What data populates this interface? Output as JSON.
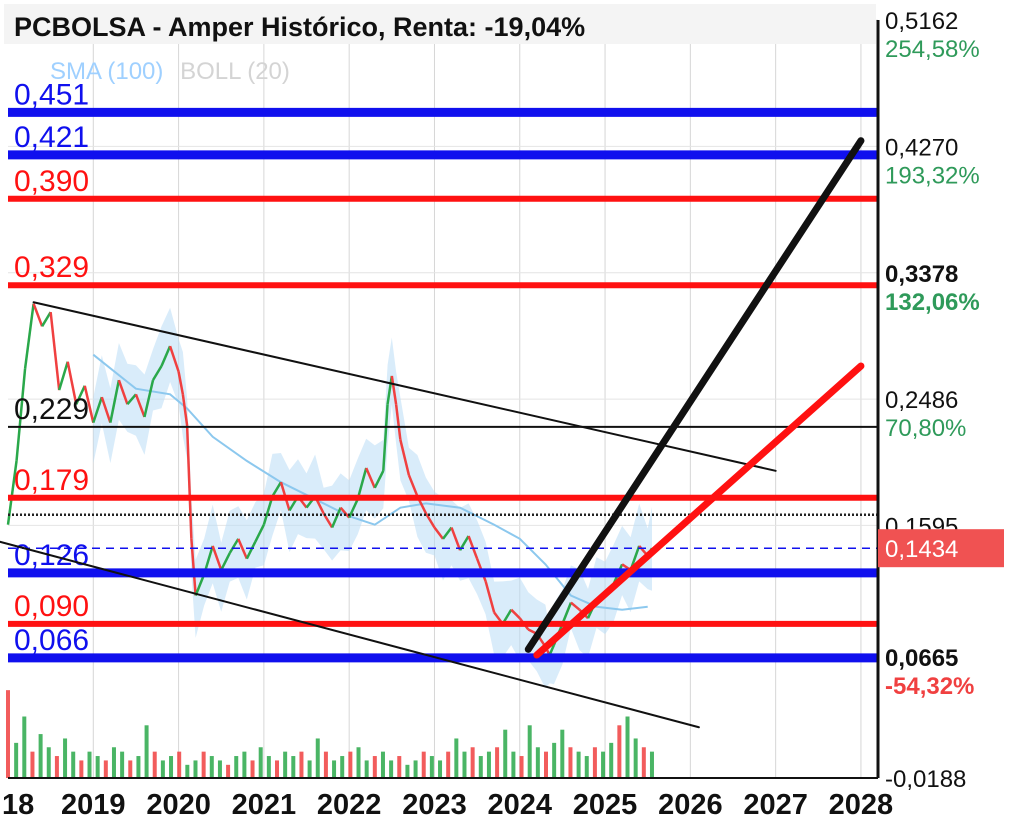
{
  "title": "PCBOLSA - Amper Histórico, Renta: -19,04%",
  "legend": {
    "sma": "SMA (100)",
    "boll": "BOLL (20)"
  },
  "colors": {
    "blue": "#1010ee",
    "red": "#ff1111",
    "black": "#111111",
    "up": "#2aa84a",
    "down": "#f04040",
    "band": "#b9dcf5",
    "sma": "#8cc8ee",
    "pct_up": "#2f9a5a",
    "pct_down": "#f04040",
    "price_badge": "#f05252"
  },
  "chart_data": {
    "type": "line",
    "xlim": [
      2018.0,
      2028.2
    ],
    "ylim": [
      -0.0188,
      0.5162
    ],
    "x_ticks": [
      "18",
      "2019",
      "2020",
      "2021",
      "2022",
      "2023",
      "2024",
      "2025",
      "2026",
      "2027",
      "2028"
    ],
    "x_tick_values": [
      2018,
      2019,
      2020,
      2021,
      2022,
      2023,
      2024,
      2025,
      2026,
      2027,
      2028
    ],
    "right_axis": [
      {
        "value": "0,5162",
        "pct": "254,58%",
        "bold": false,
        "pct_color": "up"
      },
      {
        "value": "0,4270",
        "pct": "193,32%",
        "bold": false,
        "pct_color": "up"
      },
      {
        "value": "0,3378",
        "pct": "132,06%",
        "bold": true,
        "pct_color": "up"
      },
      {
        "value": "0,2486",
        "pct": "70,80%",
        "bold": false,
        "pct_color": "up"
      },
      {
        "value": "0,1595",
        "pct": "",
        "bold": false,
        "pct_color": "up"
      },
      {
        "value": "0,0665",
        "pct": "-54,32%",
        "bold": true,
        "pct_color": "down"
      },
      {
        "value": "-0,0188",
        "pct": "",
        "bold": false,
        "pct_color": "up"
      }
    ],
    "right_axis_values": [
      0.5162,
      0.427,
      0.3378,
      0.2486,
      0.1595,
      0.0665,
      -0.0188
    ],
    "current_price": {
      "label": "0,1434",
      "value": 0.1434
    },
    "horizontal_levels": [
      {
        "label": "0,451",
        "value": 0.451,
        "color": "blue"
      },
      {
        "label": "0,421",
        "value": 0.421,
        "color": "blue"
      },
      {
        "label": "0,390",
        "value": 0.39,
        "color": "red"
      },
      {
        "label": "0,329",
        "value": 0.329,
        "color": "red"
      },
      {
        "label": "0,229",
        "value": 0.229,
        "color": "black"
      },
      {
        "label": "0,179",
        "value": 0.179,
        "color": "red"
      },
      {
        "label": "0,126",
        "value": 0.126,
        "color": "blue"
      },
      {
        "label": "0,090",
        "value": 0.09,
        "color": "red"
      },
      {
        "label": "0,066",
        "value": 0.066,
        "color": "blue"
      }
    ],
    "dotted_level": 0.167,
    "trend_lines": [
      {
        "name": "channel-top",
        "color": "black",
        "width": 2,
        "from": [
          2018.3,
          0.317
        ],
        "to": [
          2027.0,
          0.198
        ]
      },
      {
        "name": "channel-bottom",
        "color": "black",
        "width": 2,
        "from": [
          2017.9,
          0.148
        ],
        "to": [
          2026.1,
          0.017
        ]
      },
      {
        "name": "projection-black",
        "color": "black",
        "width": 7,
        "from": [
          2024.1,
          0.072
        ],
        "to": [
          2028.0,
          0.431
        ]
      },
      {
        "name": "projection-red",
        "color": "red",
        "width": 7,
        "from": [
          2024.2,
          0.068
        ],
        "to": [
          2028.0,
          0.272
        ]
      }
    ],
    "price_series": {
      "name": "",
      "points": [
        [
          2018.0,
          0.16
        ],
        [
          2018.1,
          0.205
        ],
        [
          2018.2,
          0.27
        ],
        [
          2018.3,
          0.316
        ],
        [
          2018.4,
          0.3
        ],
        [
          2018.5,
          0.31
        ],
        [
          2018.6,
          0.255
        ],
        [
          2018.7,
          0.275
        ],
        [
          2018.8,
          0.245
        ],
        [
          2018.9,
          0.258
        ],
        [
          2019.0,
          0.232
        ],
        [
          2019.1,
          0.25
        ],
        [
          2019.2,
          0.232
        ],
        [
          2019.3,
          0.262
        ],
        [
          2019.4,
          0.245
        ],
        [
          2019.5,
          0.252
        ],
        [
          2019.6,
          0.236
        ],
        [
          2019.7,
          0.262
        ],
        [
          2019.8,
          0.272
        ],
        [
          2019.9,
          0.286
        ],
        [
          2020.0,
          0.268
        ],
        [
          2020.05,
          0.252
        ],
        [
          2020.1,
          0.23
        ],
        [
          2020.15,
          0.15
        ],
        [
          2020.2,
          0.11
        ],
        [
          2020.3,
          0.125
        ],
        [
          2020.4,
          0.145
        ],
        [
          2020.5,
          0.128
        ],
        [
          2020.6,
          0.14
        ],
        [
          2020.7,
          0.15
        ],
        [
          2020.8,
          0.136
        ],
        [
          2020.9,
          0.148
        ],
        [
          2021.0,
          0.16
        ],
        [
          2021.1,
          0.18
        ],
        [
          2021.2,
          0.19
        ],
        [
          2021.3,
          0.17
        ],
        [
          2021.4,
          0.18
        ],
        [
          2021.5,
          0.172
        ],
        [
          2021.6,
          0.18
        ],
        [
          2021.7,
          0.168
        ],
        [
          2021.8,
          0.158
        ],
        [
          2021.9,
          0.172
        ],
        [
          2022.0,
          0.165
        ],
        [
          2022.1,
          0.178
        ],
        [
          2022.2,
          0.2
        ],
        [
          2022.3,
          0.186
        ],
        [
          2022.4,
          0.198
        ],
        [
          2022.45,
          0.245
        ],
        [
          2022.5,
          0.265
        ],
        [
          2022.55,
          0.245
        ],
        [
          2022.6,
          0.22
        ],
        [
          2022.7,
          0.195
        ],
        [
          2022.8,
          0.18
        ],
        [
          2022.9,
          0.168
        ],
        [
          2023.0,
          0.158
        ],
        [
          2023.1,
          0.15
        ],
        [
          2023.2,
          0.158
        ],
        [
          2023.3,
          0.142
        ],
        [
          2023.4,
          0.152
        ],
        [
          2023.5,
          0.136
        ],
        [
          2023.6,
          0.12
        ],
        [
          2023.7,
          0.098
        ],
        [
          2023.8,
          0.09
        ],
        [
          2023.9,
          0.1
        ],
        [
          2024.0,
          0.094
        ],
        [
          2024.1,
          0.086
        ],
        [
          2024.2,
          0.083
        ],
        [
          2024.3,
          0.074
        ],
        [
          2024.35,
          0.068
        ],
        [
          2024.4,
          0.075
        ],
        [
          2024.5,
          0.09
        ],
        [
          2024.6,
          0.105
        ],
        [
          2024.7,
          0.1
        ],
        [
          2024.8,
          0.094
        ],
        [
          2024.9,
          0.107
        ],
        [
          2025.0,
          0.112
        ],
        [
          2025.1,
          0.118
        ],
        [
          2025.2,
          0.132
        ],
        [
          2025.3,
          0.128
        ],
        [
          2025.4,
          0.145
        ],
        [
          2025.5,
          0.138
        ],
        [
          2025.55,
          0.1434
        ]
      ]
    },
    "sma_series": {
      "name": "",
      "points": [
        [
          2019.0,
          0.28
        ],
        [
          2019.5,
          0.256
        ],
        [
          2019.9,
          0.252
        ],
        [
          2020.1,
          0.242
        ],
        [
          2020.4,
          0.222
        ],
        [
          2020.8,
          0.205
        ],
        [
          2021.2,
          0.19
        ],
        [
          2021.6,
          0.178
        ],
        [
          2022.0,
          0.166
        ],
        [
          2022.3,
          0.16
        ],
        [
          2022.6,
          0.172
        ],
        [
          2022.9,
          0.175
        ],
        [
          2023.3,
          0.172
        ],
        [
          2023.7,
          0.16
        ],
        [
          2024.0,
          0.15
        ],
        [
          2024.3,
          0.132
        ],
        [
          2024.6,
          0.11
        ],
        [
          2024.9,
          0.102
        ],
        [
          2025.2,
          0.1
        ],
        [
          2025.5,
          0.102
        ]
      ]
    },
    "volume": {
      "baseline": -0.0188,
      "note": "",
      "values": [
        1.0,
        0.4,
        0.7,
        0.3,
        0.5,
        0.35,
        0.25,
        0.45,
        0.3,
        0.2,
        0.3,
        0.25,
        0.2,
        0.35,
        0.3,
        0.2,
        0.25,
        0.6,
        0.3,
        0.2,
        0.25,
        0.3,
        0.15,
        0.2,
        0.3,
        0.25,
        0.2,
        0.15,
        0.25,
        0.3,
        0.2,
        0.35,
        0.25,
        0.2,
        0.3,
        0.25,
        0.3,
        0.2,
        0.45,
        0.3,
        0.2,
        0.25,
        0.3,
        0.35,
        0.2,
        0.25,
        0.3,
        0.2,
        0.25,
        0.15,
        0.2,
        0.3,
        0.25,
        0.2,
        0.3,
        0.45,
        0.3,
        0.35,
        0.25,
        0.3,
        0.35,
        0.55,
        0.3,
        0.25,
        0.6,
        0.35,
        0.3,
        0.4,
        0.55,
        0.35,
        0.3,
        0.25,
        0.35,
        0.3,
        0.4,
        0.6,
        0.7,
        0.45,
        0.35,
        0.3
      ]
    }
  }
}
